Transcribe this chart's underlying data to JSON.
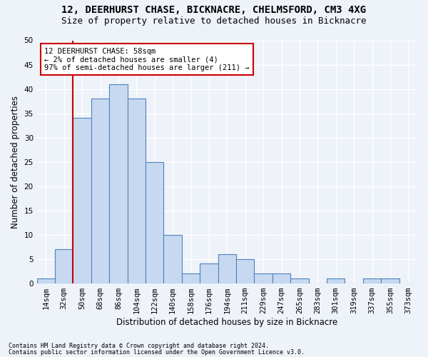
{
  "title1": "12, DEERHURST CHASE, BICKNACRE, CHELMSFORD, CM3 4XG",
  "title2": "Size of property relative to detached houses in Bicknacre",
  "xlabel": "Distribution of detached houses by size in Bicknacre",
  "ylabel": "Number of detached properties",
  "footnote1": "Contains HM Land Registry data © Crown copyright and database right 2024.",
  "footnote2": "Contains public sector information licensed under the Open Government Licence v3.0.",
  "bin_labels": [
    "14sqm",
    "32sqm",
    "50sqm",
    "68sqm",
    "86sqm",
    "104sqm",
    "122sqm",
    "140sqm",
    "158sqm",
    "176sqm",
    "194sqm",
    "211sqm",
    "229sqm",
    "247sqm",
    "265sqm",
    "283sqm",
    "301sqm",
    "319sqm",
    "337sqm",
    "355sqm",
    "373sqm"
  ],
  "bar_values": [
    1,
    7,
    34,
    38,
    41,
    38,
    25,
    10,
    2,
    4,
    6,
    5,
    2,
    2,
    1,
    0,
    1,
    0,
    1,
    1,
    0
  ],
  "bar_color": "#c6d9f0",
  "bar_edge_color": "#4f81bd",
  "vline_x_index": 1,
  "vline_color": "#cc0000",
  "annotation_text": "12 DEERHURST CHASE: 58sqm\n← 2% of detached houses are smaller (4)\n97% of semi-detached houses are larger (211) →",
  "annotation_box_color": "#ffffff",
  "annotation_box_edge": "#cc0000",
  "ylim": [
    0,
    50
  ],
  "yticks": [
    0,
    5,
    10,
    15,
    20,
    25,
    30,
    35,
    40,
    45,
    50
  ],
  "background_color": "#eef2f9",
  "grid_color": "#ffffff",
  "title1_fontsize": 10,
  "title2_fontsize": 9,
  "xlabel_fontsize": 8.5,
  "ylabel_fontsize": 8.5,
  "tick_fontsize": 7.5,
  "annotation_fontsize": 7.5
}
